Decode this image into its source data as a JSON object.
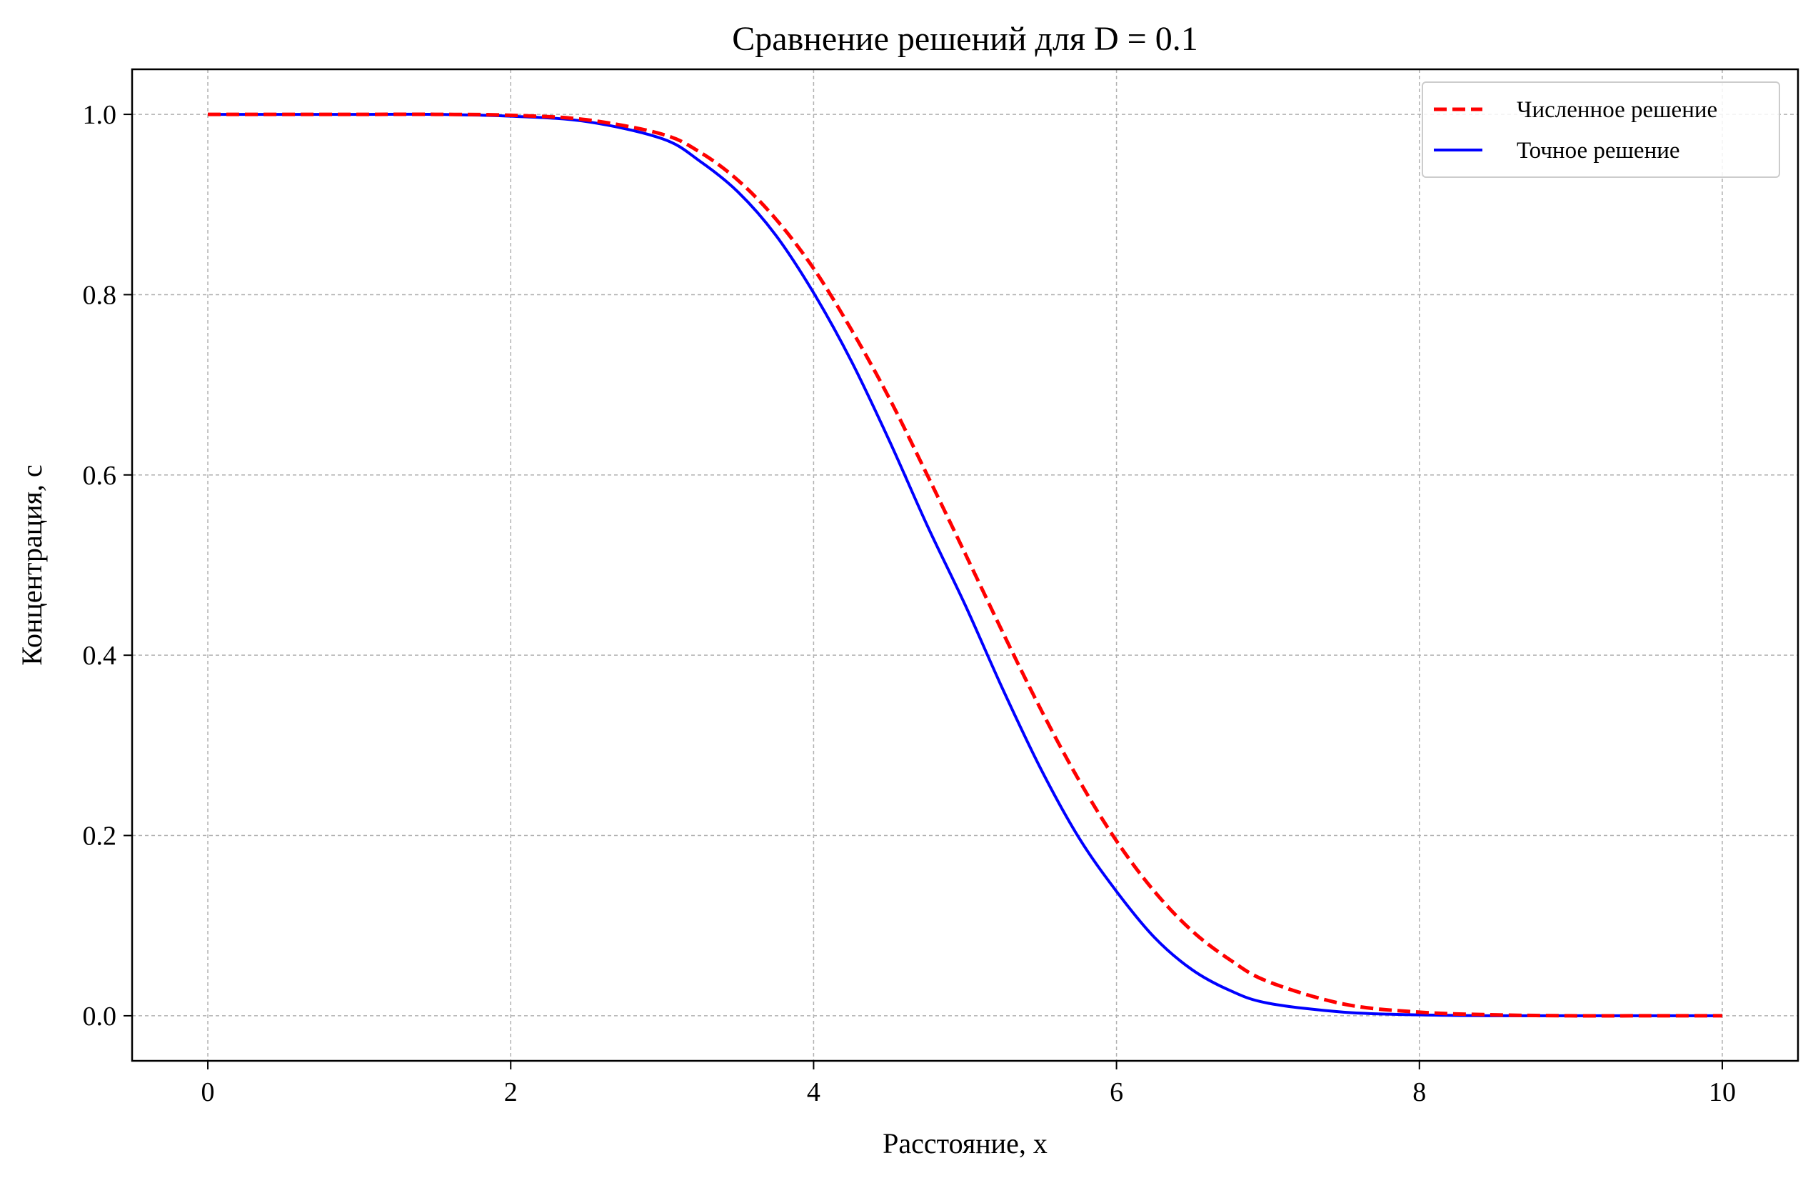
{
  "chart_data": {
    "type": "line",
    "title": "Сравнение решений для D = 0.1",
    "xlabel": "Расстояние, x",
    "ylabel": "Концентрация, c",
    "xlim": [
      -0.5,
      10.5
    ],
    "ylim": [
      -0.05,
      1.05
    ],
    "xticks": [
      0,
      2,
      4,
      6,
      8,
      10
    ],
    "yticks": [
      0.0,
      0.2,
      0.4,
      0.6,
      0.8,
      1.0
    ],
    "xtick_labels": [
      "0",
      "2",
      "4",
      "6",
      "8",
      "10"
    ],
    "ytick_labels": [
      "0.0",
      "0.2",
      "0.4",
      "0.6",
      "0.8",
      "1.0"
    ],
    "grid": true,
    "legend_position": "top-right",
    "series": [
      {
        "name": "Численное решение",
        "color": "#ff0000",
        "style": "dashed",
        "x": [
          0,
          0.5,
          1,
          1.5,
          2,
          2.5,
          3,
          3.25,
          3.5,
          3.75,
          4,
          4.25,
          4.5,
          4.75,
          5,
          5.25,
          5.5,
          5.75,
          6,
          6.25,
          6.5,
          6.75,
          7,
          7.5,
          8,
          8.5,
          9,
          9.5,
          10
        ],
        "y": [
          1.0,
          1.0,
          1.0,
          1.0,
          0.999,
          0.994,
          0.978,
          0.958,
          0.927,
          0.884,
          0.829,
          0.761,
          0.685,
          0.6,
          0.513,
          0.425,
          0.34,
          0.262,
          0.194,
          0.138,
          0.094,
          0.062,
          0.038,
          0.013,
          0.004,
          0.001,
          0.0,
          0.0,
          0.0
        ]
      },
      {
        "name": "Точное решение",
        "color": "#0000ff",
        "style": "solid",
        "x": [
          0,
          0.5,
          1,
          1.5,
          2,
          2.5,
          3,
          3.25,
          3.5,
          3.75,
          4,
          4.25,
          4.5,
          4.75,
          5,
          5.25,
          5.5,
          5.75,
          6,
          6.25,
          6.5,
          6.75,
          7,
          7.5,
          8,
          8.5,
          9,
          9.5,
          10
        ],
        "y": [
          1.0,
          1.0,
          1.0,
          1.0,
          0.998,
          0.992,
          0.973,
          0.948,
          0.914,
          0.866,
          0.802,
          0.726,
          0.638,
          0.544,
          0.456,
          0.362,
          0.274,
          0.198,
          0.138,
          0.087,
          0.051,
          0.028,
          0.014,
          0.004,
          0.001,
          0.0,
          0.0,
          0.0,
          0.0
        ]
      }
    ]
  }
}
